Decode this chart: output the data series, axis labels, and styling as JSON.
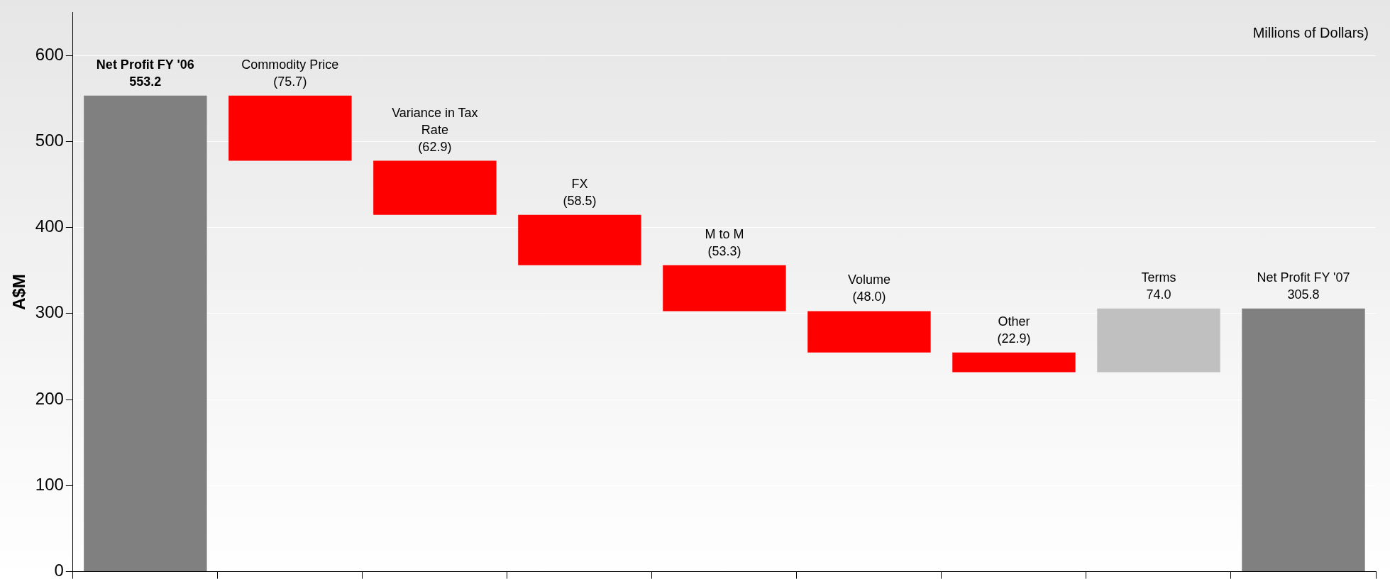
{
  "chart_data": {
    "type": "bar",
    "ylabel": "A$M",
    "annotations": [
      "Millions of Dollars)"
    ],
    "categories": [
      "Net Profit FY '06",
      "Commodity Price",
      "Variance in Tax Rate",
      "FX",
      "M to M",
      "Volume",
      "Other",
      "Terms",
      "Net Profit FY '07"
    ],
    "base": [
      0,
      553.2,
      477.5,
      414.6,
      356.1,
      302.8,
      254.8,
      231.9,
      0
    ],
    "values": [
      553.2,
      -75.7,
      -62.9,
      -58.5,
      -53.3,
      -48.0,
      -22.9,
      74.0,
      305.8
    ],
    "value_labels": [
      "553.2",
      "(75.7)",
      "(62.9)",
      "(58.5)",
      "(53.3)",
      "(48.0)",
      "(22.9)",
      "74.0",
      "305.8"
    ],
    "colors": [
      "#808080",
      "#ff0000",
      "#ff0000",
      "#ff0000",
      "#ff0000",
      "#ff0000",
      "#ff0000",
      "#c0c0c0",
      "#808080"
    ],
    "ylim": [
      0,
      650
    ],
    "yticks": [
      0,
      100,
      200,
      300,
      400,
      500,
      600
    ],
    "grid": "y",
    "legend": false
  }
}
